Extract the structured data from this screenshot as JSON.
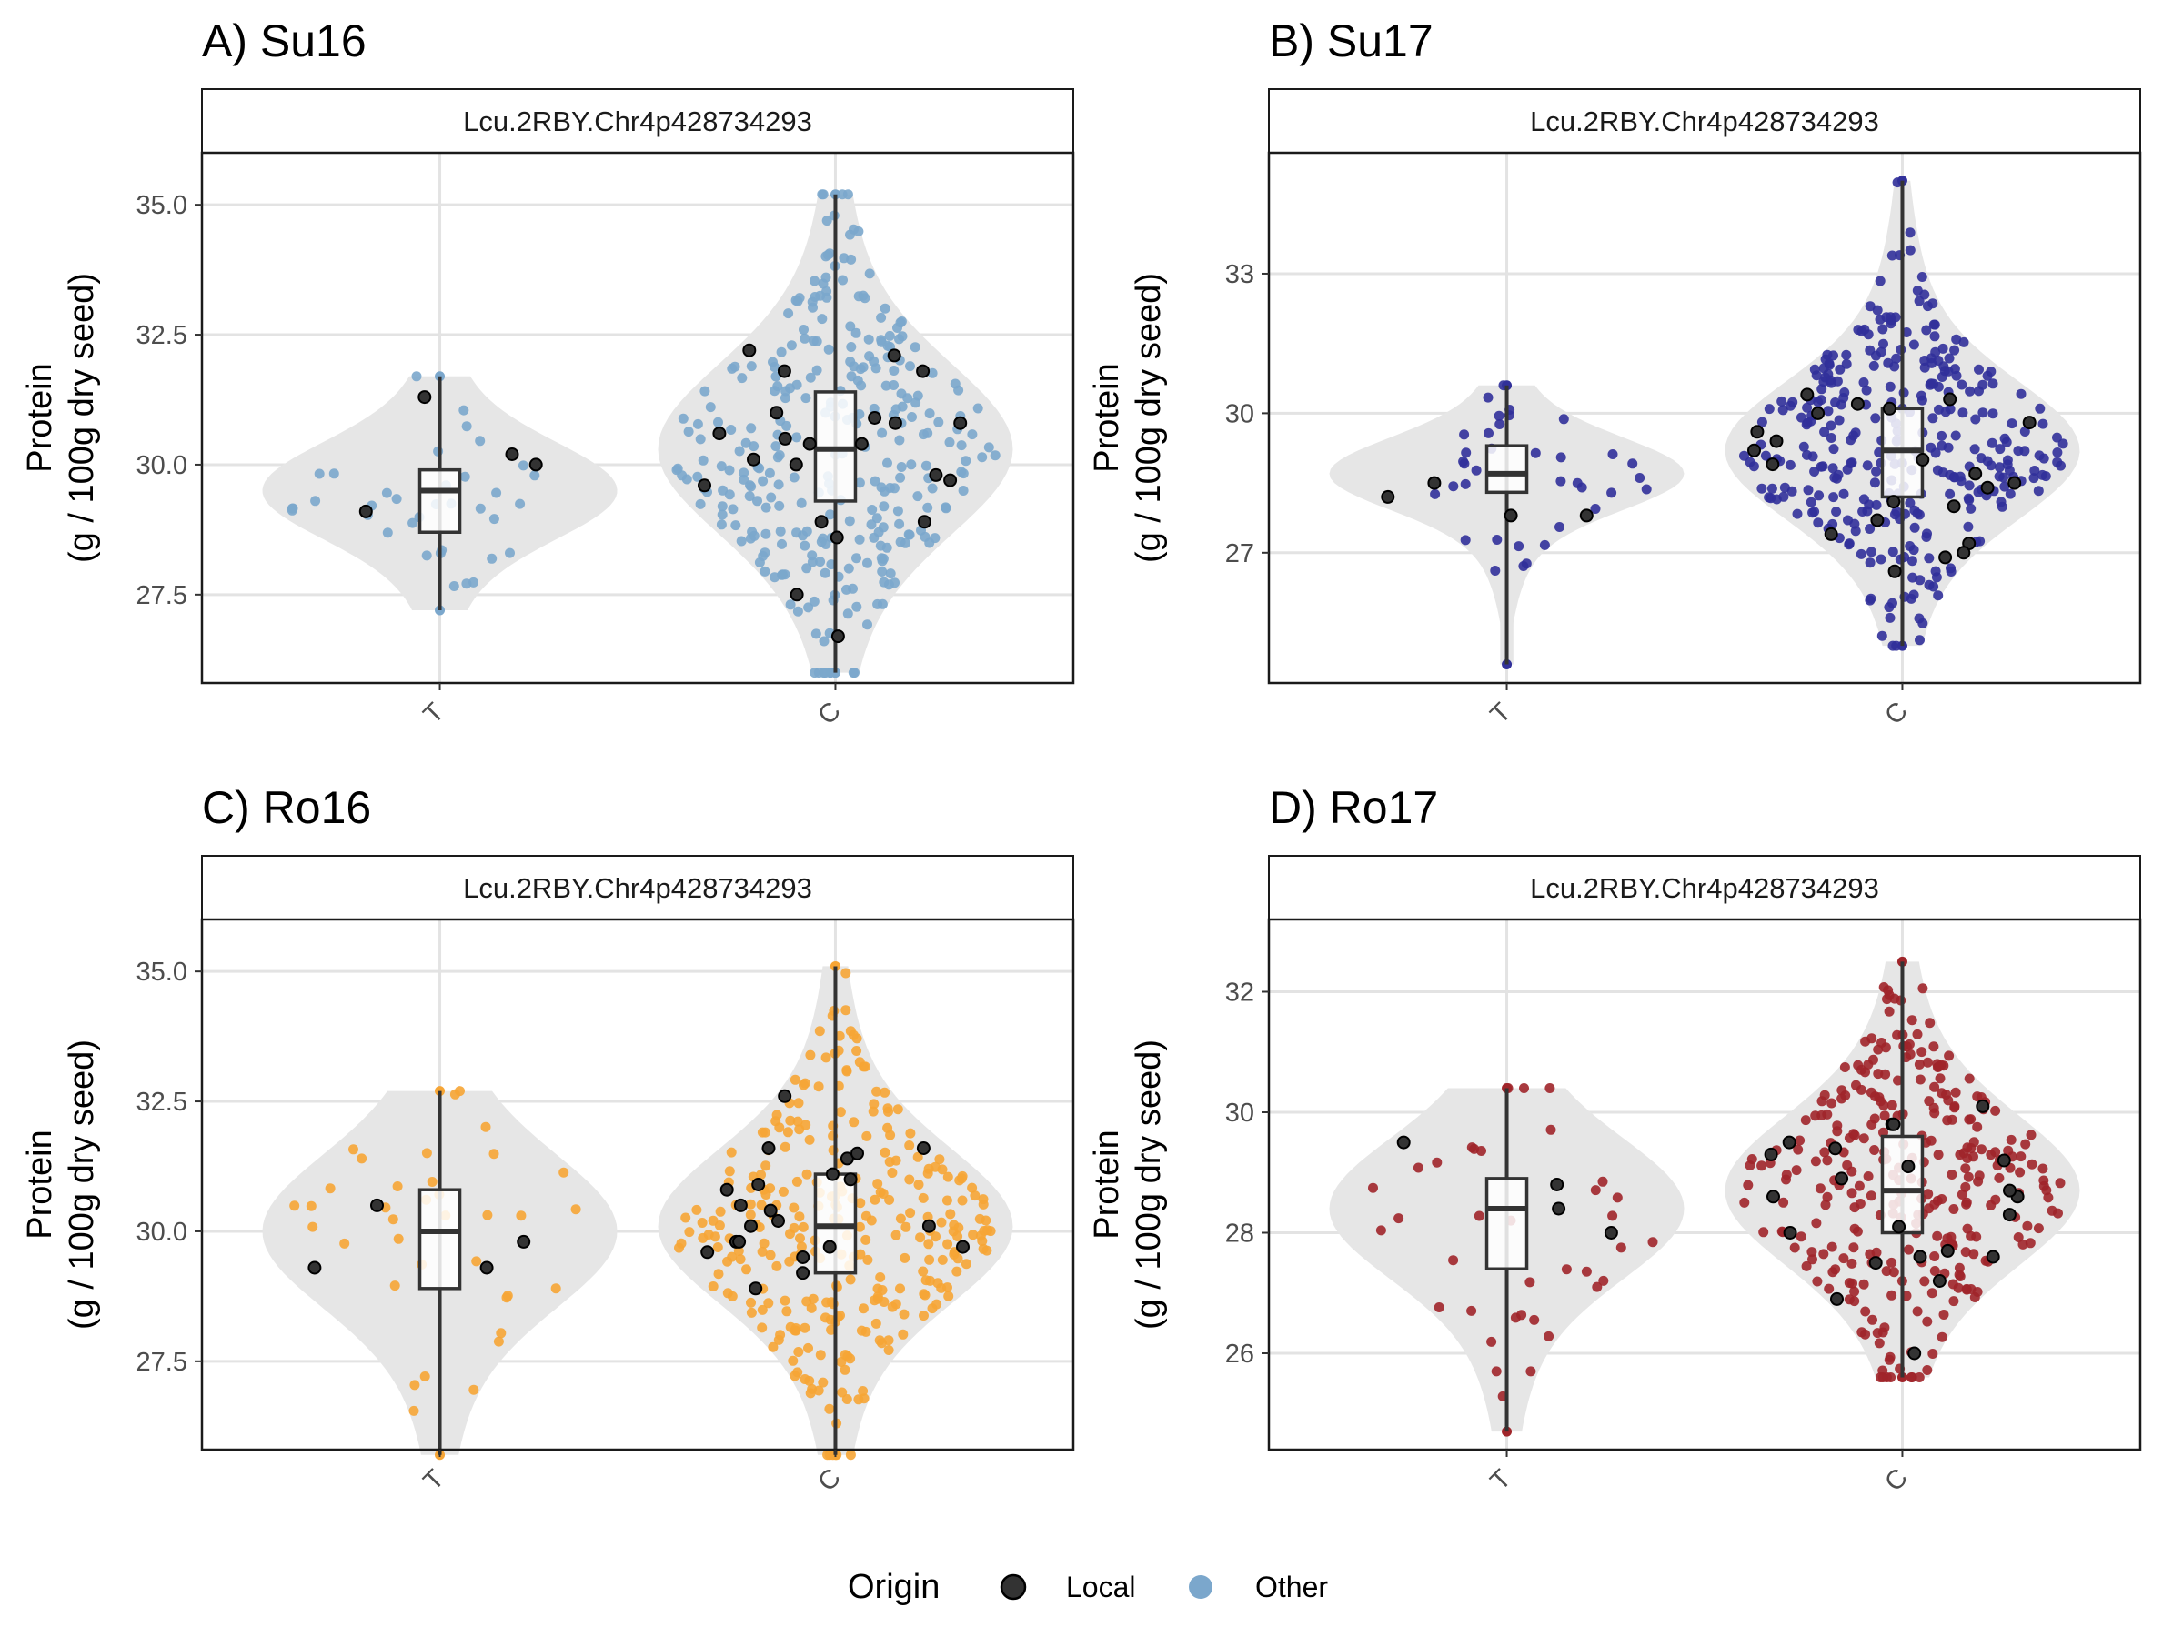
{
  "chart_data": [
    {
      "type": "violin",
      "title": "A) Su16",
      "strip": "Lcu.2RBY.Chr4p428734293",
      "ylabel_line1": "Protein",
      "ylabel_line2": "(g / 100g dry seed)",
      "categories": [
        "T",
        "C"
      ],
      "ylim": [
        25.8,
        36.0
      ],
      "yticks": [
        27.5,
        30.0,
        32.5,
        35.0
      ],
      "ytick_labels": [
        "27.5",
        "30.0",
        "32.5",
        "35.0"
      ],
      "other_color": "#7ba7cc",
      "groups": [
        {
          "category": "T",
          "n_other": 36,
          "n_local": 4,
          "min": 27.2,
          "q1": 28.7,
          "median": 29.5,
          "q3": 29.9,
          "max": 31.7,
          "local_values": [
            31.3,
            30.0,
            29.1,
            30.2
          ]
        },
        {
          "category": "C",
          "n_other": 300,
          "n_local": 22,
          "min": 26.0,
          "q1": 29.3,
          "median": 30.3,
          "q3": 31.4,
          "max": 35.2,
          "local_values": [
            31.8,
            31.0,
            30.6,
            30.0,
            28.9,
            28.6,
            30.1,
            32.2,
            30.8,
            30.5,
            29.6,
            29.8,
            30.9,
            32.1,
            31.8,
            28.9,
            27.5,
            26.7,
            29.7,
            30.4,
            30.8,
            30.4
          ]
        }
      ]
    },
    {
      "type": "violin",
      "title": "B) Su17",
      "strip": "Lcu.2RBY.Chr4p428734293",
      "ylabel_line1": "Protein",
      "ylabel_line2": "(g / 100g dry seed)",
      "categories": [
        "T",
        "C"
      ],
      "ylim": [
        24.2,
        35.6
      ],
      "yticks": [
        27,
        30,
        33
      ],
      "ytick_labels": [
        "27",
        "30",
        "33"
      ],
      "other_color": "#31309a",
      "groups": [
        {
          "category": "T",
          "n_other": 36,
          "n_local": 4,
          "min": 24.6,
          "q1": 28.3,
          "median": 28.7,
          "q3": 29.3,
          "max": 30.6,
          "local_values": [
            28.2,
            27.8,
            28.5,
            27.8
          ]
        },
        {
          "category": "C",
          "n_other": 330,
          "n_local": 22,
          "min": 25.0,
          "q1": 28.2,
          "median": 29.2,
          "q3": 30.1,
          "max": 35.0,
          "local_values": [
            28.7,
            28.5,
            29.0,
            29.2,
            30.4,
            30.2,
            30.1,
            29.8,
            28.1,
            27.7,
            27.4,
            27.2,
            26.9,
            26.6,
            28.4,
            30.0,
            29.6,
            28.9,
            28.0,
            27.0,
            29.4,
            30.3
          ]
        }
      ]
    },
    {
      "type": "violin",
      "title": "C) Ro16",
      "strip": "Lcu.2RBY.Chr4p428734293",
      "ylabel_line1": "Protein",
      "ylabel_line2": "(g / 100g dry seed)",
      "categories": [
        "T",
        "C"
      ],
      "ylim": [
        25.8,
        36.0
      ],
      "yticks": [
        27.5,
        30.0,
        32.5,
        35.0
      ],
      "ytick_labels": [
        "27.5",
        "30.0",
        "32.5",
        "35.0"
      ],
      "other_color": "#f6a535",
      "groups": [
        {
          "category": "T",
          "n_other": 36,
          "n_local": 4,
          "min": 25.7,
          "q1": 28.9,
          "median": 30.0,
          "q3": 30.8,
          "max": 32.7,
          "local_values": [
            30.5,
            29.3,
            29.8,
            29.3
          ]
        },
        {
          "category": "C",
          "n_other": 300,
          "n_local": 22,
          "min": 25.7,
          "q1": 29.2,
          "median": 30.1,
          "q3": 31.1,
          "max": 35.1,
          "local_values": [
            31.0,
            29.8,
            29.7,
            30.1,
            30.5,
            31.6,
            31.6,
            31.4,
            30.8,
            30.4,
            30.1,
            29.2,
            28.9,
            29.5,
            29.6,
            29.7,
            31.5,
            32.6,
            30.9,
            29.8,
            30.2,
            31.1
          ]
        }
      ]
    },
    {
      "type": "violin",
      "title": "D) Ro17",
      "strip": "Lcu.2RBY.Chr4p428734293",
      "ylabel_line1": "Protein",
      "ylabel_line2": "(g / 100g dry seed)",
      "categories": [
        "T",
        "C"
      ],
      "ylim": [
        24.4,
        33.2
      ],
      "yticks": [
        26,
        28,
        30,
        32
      ],
      "ytick_labels": [
        "26",
        "28",
        "30",
        "32"
      ],
      "other_color": "#a0252a",
      "groups": [
        {
          "category": "T",
          "n_other": 36,
          "n_local": 4,
          "min": 24.7,
          "q1": 27.4,
          "median": 28.4,
          "q3": 28.9,
          "max": 30.4,
          "local_values": [
            29.5,
            28.4,
            28.8,
            28.0
          ]
        },
        {
          "category": "C",
          "n_other": 300,
          "n_local": 22,
          "min": 25.6,
          "q1": 28.0,
          "median": 28.7,
          "q3": 29.6,
          "max": 32.5,
          "local_values": [
            28.6,
            29.1,
            29.4,
            29.8,
            30.1,
            29.5,
            28.7,
            28.0,
            27.6,
            27.2,
            26.9,
            26.0,
            27.5,
            29.8,
            29.3,
            28.1,
            27.7,
            28.9,
            28.3,
            27.6,
            29.2,
            28.6
          ]
        }
      ]
    }
  ],
  "legend": {
    "title": "Origin",
    "items": [
      {
        "label": "Local",
        "color": "#333333"
      },
      {
        "label": "Other",
        "color": "#7ba7cc"
      }
    ]
  }
}
